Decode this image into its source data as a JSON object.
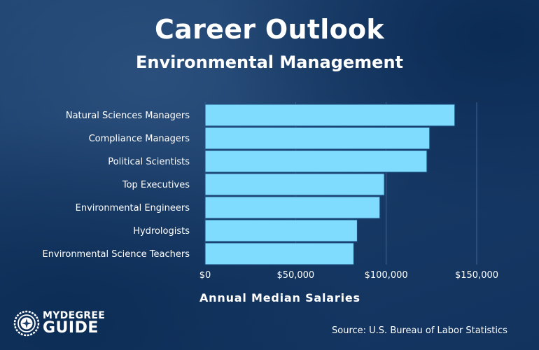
{
  "header": {
    "title": "Career Outlook",
    "subtitle": "Environmental Management"
  },
  "chart_data": {
    "type": "bar",
    "orientation": "horizontal",
    "categories": [
      "Natural Sciences Managers",
      "Compliance Managers",
      "Political Scientists",
      "Top Executives",
      "Environmental Engineers",
      "Hydrologists",
      "Environmental Science Teachers"
    ],
    "values": [
      137900,
      124000,
      122500,
      98980,
      96530,
      84040,
      82100
    ],
    "xlabel": "Annual Median Salaries",
    "ylabel": "",
    "xlim": [
      0,
      150000
    ],
    "xticks": [
      0,
      50000,
      100000,
      150000
    ],
    "xtick_labels": [
      "$0",
      "$50,000",
      "$100,000",
      "$150,000"
    ],
    "grid": true,
    "legend": "none",
    "colors": {
      "bar": "#7fdcff",
      "bar_edge": "#1c4e82",
      "gridline": "#3d6494"
    }
  },
  "footer": {
    "source": "Source: U.S. Bureau of Labor Statistics",
    "logo_line1": "MYDEGREE",
    "logo_line2": "GUIDE"
  },
  "icons": {
    "logo_emblem": "compass-seal-icon"
  }
}
